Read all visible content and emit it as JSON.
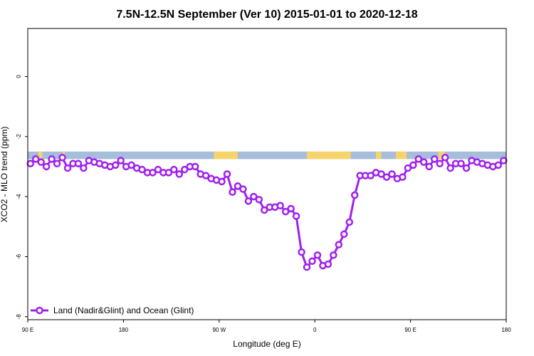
{
  "chart_data": {
    "type": "line",
    "title": "7.5N-12.5N September (Ver 10)   2015-01-01 to 2020-12-18",
    "xlabel": "Longitude (deg E)",
    "ylabel": "XCO2 - MLO trend (ppm)",
    "xlim": [
      90,
      450
    ],
    "ylim": [
      -8.1,
      1.6
    ],
    "x_ticks": [
      {
        "value": 90,
        "label": "90 E"
      },
      {
        "value": 162,
        "label": "180"
      },
      {
        "value": 234,
        "label": "90 W"
      },
      {
        "value": 306,
        "label": "0"
      },
      {
        "value": 378,
        "label": "90 E"
      },
      {
        "value": 450,
        "label": "180"
      }
    ],
    "y_ticks": [
      {
        "value": 0,
        "label": "0"
      },
      {
        "value": -2,
        "label": "-2"
      },
      {
        "value": -4,
        "label": "-4"
      },
      {
        "value": -6,
        "label": "-6"
      },
      {
        "value": -8,
        "label": "-8"
      }
    ],
    "land_ocean_band": {
      "y_range": [
        -2.75,
        -2.5
      ],
      "ocean_color": "#a6bddb",
      "land_color": "#f7d46b",
      "land_segments": [
        [
          98,
          101
        ],
        [
          116,
          118
        ],
        [
          230,
          248
        ],
        [
          300,
          333
        ],
        [
          352,
          356
        ],
        [
          367,
          375
        ],
        [
          399,
          404
        ]
      ]
    },
    "series": [
      {
        "name": "Land (Nadir&Glint) and Ocean (Glint)",
        "color": "#a020f0",
        "x": [
          92,
          96,
          100,
          104,
          108,
          112,
          116,
          120,
          124,
          128,
          132,
          136,
          140,
          144,
          148,
          152,
          156,
          160,
          164,
          168,
          172,
          176,
          180,
          184,
          188,
          192,
          196,
          200,
          204,
          208,
          212,
          216,
          220,
          224,
          228,
          232,
          236,
          240,
          244,
          248,
          252,
          256,
          260,
          264,
          268,
          272,
          276,
          280,
          284,
          288,
          292,
          296,
          300,
          304,
          308,
          312,
          316,
          320,
          324,
          328,
          332,
          336,
          340,
          344,
          348,
          352,
          356,
          360,
          364,
          368,
          372,
          376,
          380,
          384,
          388,
          392,
          396,
          400,
          404,
          408,
          412,
          416,
          420,
          424,
          428,
          432,
          436,
          440,
          444,
          448
        ],
        "y": [
          -2.9,
          -2.75,
          -2.85,
          -3.0,
          -2.75,
          -2.9,
          -2.7,
          -3.05,
          -2.9,
          -2.9,
          -3.05,
          -2.8,
          -2.85,
          -2.9,
          -2.95,
          -3.0,
          -2.95,
          -2.8,
          -3.0,
          -2.95,
          -3.05,
          -3.1,
          -3.2,
          -3.2,
          -3.1,
          -3.2,
          -3.2,
          -3.1,
          -3.25,
          -3.1,
          -3.0,
          -3.0,
          -3.25,
          -3.3,
          -3.4,
          -3.45,
          -3.5,
          -3.25,
          -3.85,
          -3.65,
          -3.75,
          -4.15,
          -4.0,
          -4.1,
          -4.45,
          -4.35,
          -4.35,
          -4.3,
          -4.5,
          -4.4,
          -4.65,
          -5.85,
          -6.35,
          -6.15,
          -5.95,
          -6.3,
          -6.25,
          -5.95,
          -5.6,
          -5.25,
          -4.85,
          -3.95,
          -3.3,
          -3.3,
          -3.3,
          -3.2,
          -3.25,
          -3.35,
          -3.25,
          -3.4,
          -3.35,
          -3.05,
          -2.95,
          -2.75,
          -2.85,
          -3.0,
          -2.75,
          -2.9,
          -2.7,
          -3.05,
          -2.9,
          -2.9,
          -3.05,
          -2.8,
          -2.85,
          -2.9,
          -2.95,
          -3.0,
          -2.95,
          -2.8
        ]
      }
    ],
    "legend": {
      "placement": "bottom-left"
    },
    "grid": false
  }
}
